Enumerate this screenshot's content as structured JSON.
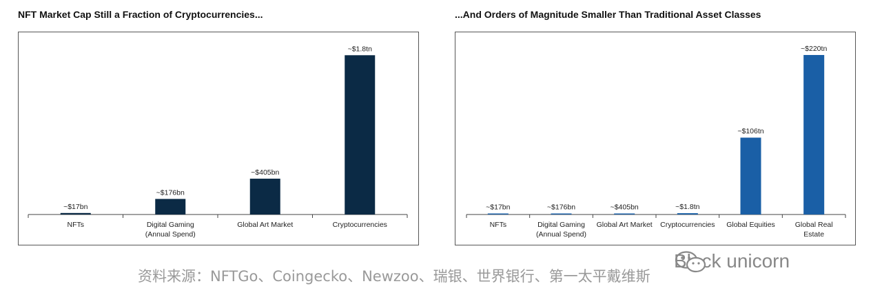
{
  "chart_data": [
    {
      "type": "bar",
      "title": "NFT Market Cap Still a Fraction of Cryptocurrencies...",
      "categories": [
        [
          "NFTs"
        ],
        [
          "Digital Gaming",
          "(Annual Spend)"
        ],
        [
          "Global Art Market"
        ],
        [
          "Cryptocurrencies"
        ]
      ],
      "values": [
        0.017,
        0.176,
        0.405,
        1.8
      ],
      "value_unit": "trillion USD",
      "data_labels": [
        "~$17bn",
        "~$176bn",
        "~$405bn",
        "~$1.8tn"
      ],
      "ylim": [
        0,
        1.95
      ],
      "color": "#0b2a45",
      "grid": false,
      "legend": "none"
    },
    {
      "type": "bar",
      "title": "...And Orders of Magnitude Smaller Than Traditional Asset Classes",
      "categories": [
        [
          "NFTs"
        ],
        [
          "Digital Gaming",
          "(Annual Spend)"
        ],
        [
          "Global Art Market"
        ],
        [
          "Cryptocurrencies"
        ],
        [
          "Global Equities"
        ],
        [
          "Global Real",
          "Estate"
        ]
      ],
      "values": [
        0.017,
        0.176,
        0.405,
        1.8,
        106,
        220
      ],
      "value_unit": "trillion USD",
      "data_labels": [
        "~$17bn",
        "~$176bn",
        "~$405bn",
        "~$1.8tn",
        "~$106tn",
        "~$220tn"
      ],
      "ylim": [
        0,
        238
      ],
      "color": "#1a5fa6",
      "grid": false,
      "legend": "none"
    }
  ],
  "caption": "资料来源：NFTGo、Coingecko、Newzoo、瑞银、世界银行、第一太平戴维斯",
  "watermark": {
    "text": "Block unicorn",
    "icon": "wechat-icon"
  }
}
